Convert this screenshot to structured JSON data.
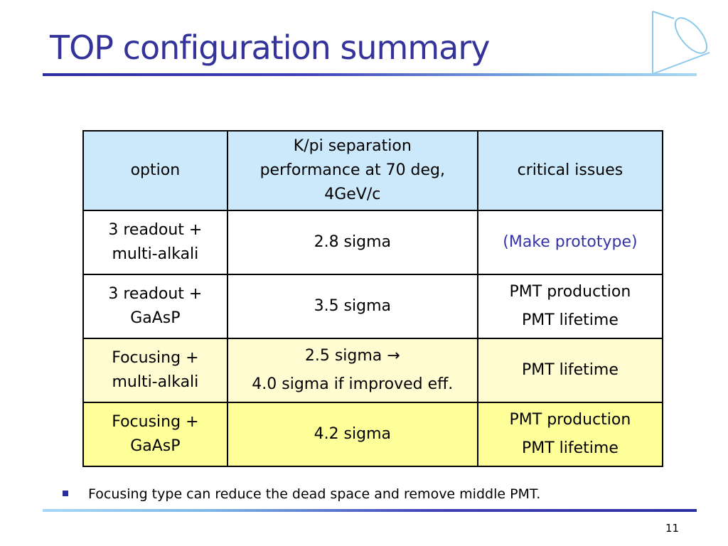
{
  "slide": {
    "title": "TOP configuration summary",
    "page_number": "11",
    "accent_color": "#333399",
    "logo_icon": "cone-outline-icon"
  },
  "table": {
    "headers": {
      "option": "option",
      "performance_lines": [
        "K/pi separation",
        "performance at 70 deg,",
        "4GeV/c"
      ],
      "issues": "critical issues"
    },
    "rows": [
      {
        "option_lines": [
          "3 readout +",
          "multi-alkali"
        ],
        "performance_lines": [
          "2.8 sigma"
        ],
        "issues_lines": [
          "(Make prototype)"
        ]
      },
      {
        "option_lines": [
          "3 readout +",
          "GaAsP"
        ],
        "performance_lines": [
          "3.5 sigma"
        ],
        "issues_lines": [
          "PMT production",
          "PMT lifetime"
        ]
      },
      {
        "option_lines": [
          "Focusing +",
          "multi-alkali"
        ],
        "performance_lines": [
          "2.5 sigma",
          "4.0 sigma if improved eff."
        ],
        "performance_arrow": "→",
        "issues_lines": [
          "PMT lifetime"
        ]
      },
      {
        "option_lines": [
          "Focusing +",
          "GaAsP"
        ],
        "performance_lines": [
          "4.2 sigma"
        ],
        "issues_lines": [
          "PMT production",
          "PMT lifetime"
        ]
      }
    ]
  },
  "bullets": [
    "Focusing type can reduce the dead space and remove middle PMT."
  ]
}
